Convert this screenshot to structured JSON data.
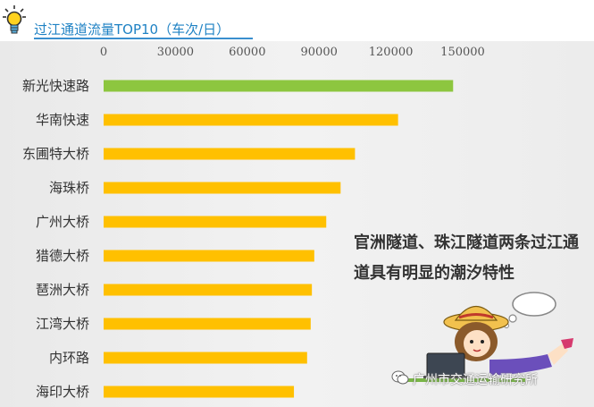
{
  "title": "过江通道流量TOP10（车次/日）",
  "annotation": "官洲隧道、珠江隧道两条过江通道具有明显的潮汐特性",
  "watermark": "广州市交通运输研究所",
  "icons": {
    "header": "lightbulb-icon",
    "watermark": "wechat-icon",
    "illustration": "girl-with-laptop-illustration"
  },
  "colors": {
    "highlight": "#8dc63f",
    "bar": "#ffc000",
    "title": "#1f82c4"
  },
  "chart_data": {
    "type": "bar",
    "orientation": "horizontal",
    "title": "过江通道流量TOP10（车次/日）",
    "categories": [
      "新光快速路",
      "华南快速",
      "东圃特大桥",
      "海珠桥",
      "广州大桥",
      "猎德大桥",
      "琶洲大桥",
      "江湾大桥",
      "内环路",
      "海印大桥"
    ],
    "values": [
      146000,
      123000,
      105000,
      99000,
      93000,
      88000,
      87000,
      86500,
      85000,
      79500
    ],
    "xlim": [
      0,
      150000
    ],
    "xticks": [
      "0",
      "30000",
      "60000",
      "90000",
      "120000",
      "150000"
    ],
    "axis_position": "top",
    "grid": false,
    "legend": "none"
  }
}
